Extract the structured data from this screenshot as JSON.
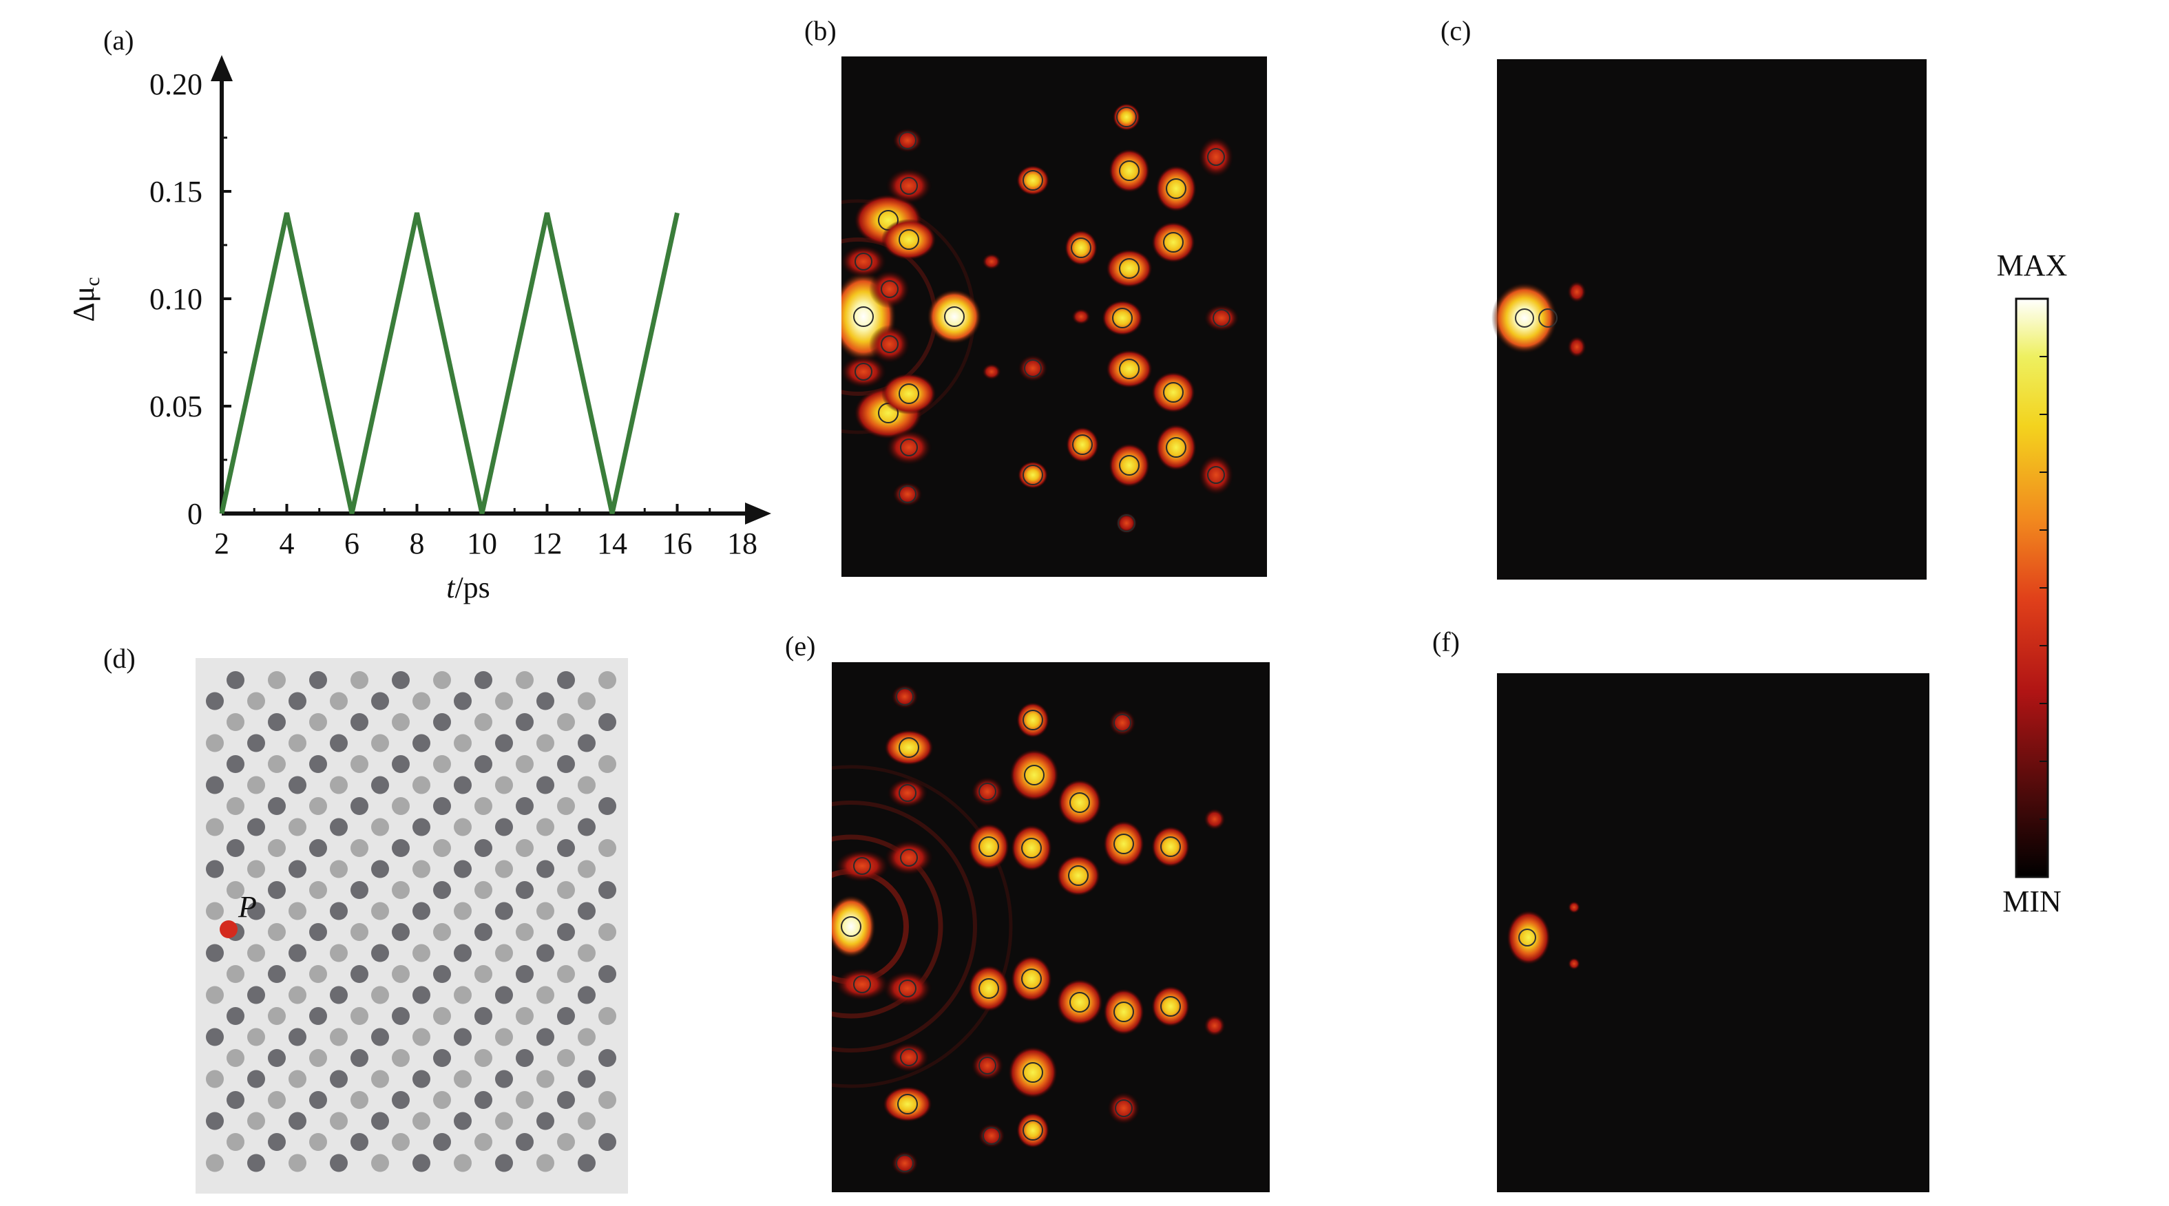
{
  "panels": {
    "a": {
      "label": "(a)"
    },
    "b": {
      "label": "(b)"
    },
    "c": {
      "label": "(c)"
    },
    "d": {
      "label": "(d)",
      "marker_label": "P",
      "marker_color": "#d42a1e"
    },
    "e": {
      "label": "(e)"
    },
    "f": {
      "label": "(f)"
    }
  },
  "colorbar": {
    "max_label": "MAX",
    "min_label": "MIN",
    "colors": [
      "#000000",
      "#4a0a0a",
      "#b01414",
      "#e0401a",
      "#f28a1e",
      "#f3d31e",
      "#eef060",
      "#ffffff"
    ]
  },
  "chart_data": {
    "type": "line",
    "title": "",
    "xlabel_italic": "t",
    "xlabel_rest": "/ps",
    "ylabel_main": "Δμ",
    "ylabel_sub": "c",
    "xlim": [
      2,
      18
    ],
    "ylim": [
      0,
      0.2
    ],
    "xticks": [
      "2",
      "4",
      "6",
      "8",
      "10",
      "12",
      "14",
      "16",
      "18"
    ],
    "yticks": [
      "0",
      "0.05",
      "0.10",
      "0.15",
      "0.20"
    ],
    "grid": false,
    "series": [
      {
        "color": "#3a7d3a",
        "x": [
          2,
          4,
          6,
          8,
          10,
          12,
          14,
          16
        ],
        "y": [
          0,
          0.14,
          0,
          0.14,
          0,
          0.14,
          0,
          0.14
        ]
      }
    ]
  },
  "lattice": {
    "bg": "#e6e6e6",
    "dark": "#6b6b70",
    "light": "#a8a8a8"
  },
  "fields": {
    "bg": "#0c0b0b"
  }
}
